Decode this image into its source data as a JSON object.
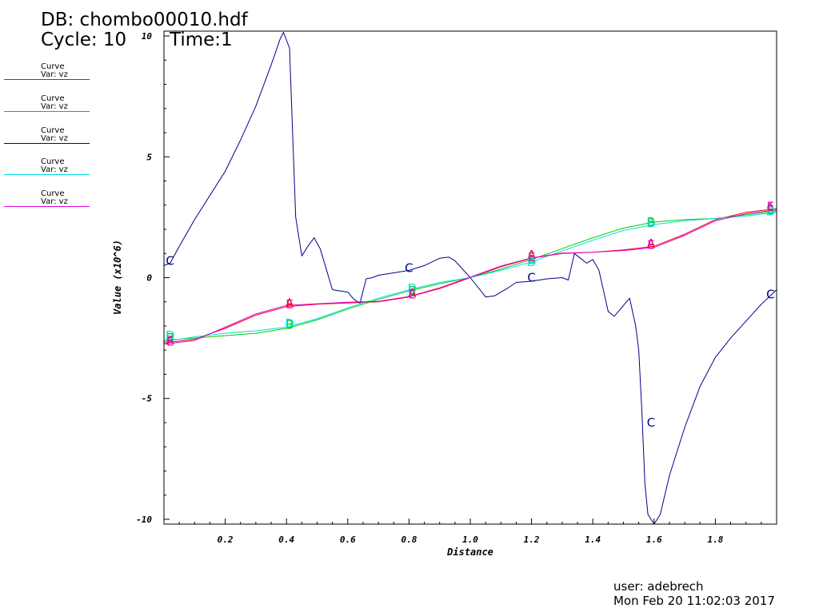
{
  "header": {
    "db_label": "DB: chombo00010.hdf",
    "cycle_label": "Cycle: 10",
    "time_label": "Time:1"
  },
  "legend": [
    {
      "line1": "Curve",
      "line2": "Var: vz",
      "color": "#ff0000"
    },
    {
      "line1": "Curve",
      "line2": "Var: vz",
      "color": "#00cc00"
    },
    {
      "line1": "Curve",
      "line2": "Var: vz",
      "color": "#00008b"
    },
    {
      "line1": "Curve",
      "line2": "Var: vz",
      "color": "#00e0e0"
    },
    {
      "line1": "Curve",
      "line2": "Var: vz",
      "color": "#dd00dd"
    }
  ],
  "footer": {
    "user": "user: adebrech",
    "date": "Mon Feb 20 11:02:03 2017"
  },
  "chart_data": {
    "type": "line",
    "xlabel": "Distance",
    "ylabel": "Value (x10^6)",
    "xlim": [
      0.0,
      2.0
    ],
    "ylim": [
      -10.2,
      10.2
    ],
    "x_ticks": [
      {
        "v": 0.2,
        "label": "0.2"
      },
      {
        "v": 0.4,
        "label": "0.4"
      },
      {
        "v": 0.6,
        "label": "0.6"
      },
      {
        "v": 0.8,
        "label": "0.8"
      },
      {
        "v": 1.0,
        "label": "1.0"
      },
      {
        "v": 1.2,
        "label": "1.2"
      },
      {
        "v": 1.4,
        "label": "1.4"
      },
      {
        "v": 1.6,
        "label": "1.6"
      },
      {
        "v": 1.8,
        "label": "1.8"
      }
    ],
    "y_ticks": [
      {
        "v": 10,
        "label": "10"
      },
      {
        "v": 5,
        "label": "5"
      },
      {
        "v": 0,
        "label": "0"
      },
      {
        "v": -5,
        "label": "-5"
      },
      {
        "v": -10,
        "label": "-10"
      }
    ],
    "series": [
      {
        "color": "#ff0000",
        "marker": "A",
        "x": [
          0.0,
          0.1,
          0.2,
          0.3,
          0.4,
          0.5,
          0.6,
          0.7,
          0.8,
          0.9,
          1.0,
          1.1,
          1.2,
          1.3,
          1.4,
          1.5,
          1.6,
          1.7,
          1.8,
          1.9,
          2.0
        ],
        "values": [
          -2.7,
          -2.55,
          -2.1,
          -1.55,
          -1.2,
          -1.1,
          -1.05,
          -1.0,
          -0.8,
          -0.45,
          0.0,
          0.45,
          0.8,
          1.0,
          1.05,
          1.15,
          1.3,
          1.8,
          2.4,
          2.7,
          2.85
        ],
        "markers": [
          [
            0.02,
            -2.6
          ],
          [
            0.41,
            -1.05
          ],
          [
            0.81,
            -0.65
          ],
          [
            1.2,
            0.95
          ],
          [
            1.59,
            1.4
          ],
          [
            1.98,
            2.9
          ]
        ]
      },
      {
        "color": "#00cc00",
        "marker": "B",
        "x": [
          0.0,
          0.1,
          0.2,
          0.3,
          0.4,
          0.5,
          0.6,
          0.7,
          0.8,
          0.9,
          1.0,
          1.1,
          1.2,
          1.3,
          1.4,
          1.5,
          1.6,
          1.7,
          1.8,
          1.9,
          2.0
        ],
        "values": [
          -2.6,
          -2.5,
          -2.4,
          -2.3,
          -2.1,
          -1.75,
          -1.3,
          -0.9,
          -0.55,
          -0.25,
          0.0,
          0.35,
          0.75,
          1.2,
          1.65,
          2.05,
          2.3,
          2.4,
          2.45,
          2.6,
          2.75
        ],
        "markers": [
          [
            0.02,
            -2.5
          ],
          [
            0.41,
            -1.95
          ],
          [
            0.81,
            -0.55
          ],
          [
            1.2,
            0.75
          ],
          [
            1.59,
            2.3
          ],
          [
            1.98,
            2.8
          ]
        ]
      },
      {
        "color": "#00008b",
        "marker": "C",
        "x": [
          0.0,
          0.02,
          0.05,
          0.1,
          0.15,
          0.2,
          0.25,
          0.3,
          0.35,
          0.38,
          0.39,
          0.41,
          0.43,
          0.45,
          0.47,
          0.49,
          0.51,
          0.55,
          0.6,
          0.62,
          0.64,
          0.66,
          0.68,
          0.7,
          0.75,
          0.8,
          0.85,
          0.9,
          0.93,
          0.95,
          1.0,
          1.05,
          1.08,
          1.12,
          1.15,
          1.2,
          1.25,
          1.3,
          1.32,
          1.34,
          1.36,
          1.38,
          1.4,
          1.42,
          1.45,
          1.47,
          1.49,
          1.52,
          1.54,
          1.55,
          1.56,
          1.57,
          1.58,
          1.6,
          1.62,
          1.65,
          1.7,
          1.75,
          1.8,
          1.85,
          1.9,
          1.95,
          2.0
        ],
        "values": [
          0.5,
          0.6,
          1.3,
          2.4,
          3.4,
          4.4,
          5.7,
          7.1,
          8.8,
          9.9,
          10.15,
          9.5,
          2.5,
          0.9,
          1.3,
          1.65,
          1.2,
          -0.5,
          -0.6,
          -0.9,
          -1.05,
          -0.05,
          0.0,
          0.1,
          0.2,
          0.3,
          0.5,
          0.8,
          0.85,
          0.7,
          0.0,
          -0.8,
          -0.75,
          -0.45,
          -0.2,
          -0.15,
          -0.05,
          0.0,
          -0.1,
          1.0,
          0.8,
          0.6,
          0.75,
          0.3,
          -1.4,
          -1.6,
          -1.3,
          -0.85,
          -2.0,
          -3.0,
          -5.5,
          -8.5,
          -9.8,
          -10.2,
          -9.8,
          -8.2,
          -6.2,
          -4.5,
          -3.3,
          -2.5,
          -1.8,
          -1.1,
          -0.5
        ],
        "markers": [
          [
            0.02,
            0.7
          ],
          [
            0.8,
            0.4
          ],
          [
            1.2,
            0.0
          ],
          [
            1.59,
            -6.0
          ],
          [
            1.98,
            -0.7
          ]
        ]
      },
      {
        "color": "#00e0e0",
        "marker": "D",
        "x": [
          0.0,
          0.1,
          0.2,
          0.3,
          0.4,
          0.5,
          0.6,
          0.7,
          0.8,
          0.9,
          1.0,
          1.1,
          1.2,
          1.3,
          1.4,
          1.5,
          1.6,
          1.7,
          1.8,
          1.9,
          2.0
        ],
        "values": [
          -2.65,
          -2.45,
          -2.3,
          -2.2,
          -2.05,
          -1.7,
          -1.25,
          -0.85,
          -0.5,
          -0.2,
          0.0,
          0.3,
          0.65,
          1.1,
          1.55,
          1.95,
          2.2,
          2.35,
          2.45,
          2.55,
          2.7
        ],
        "markers": [
          [
            0.02,
            -2.4
          ],
          [
            0.41,
            -1.9
          ],
          [
            0.81,
            -0.45
          ],
          [
            1.2,
            0.65
          ],
          [
            1.59,
            2.25
          ],
          [
            1.98,
            2.75
          ]
        ]
      },
      {
        "color": "#dd00dd",
        "marker": "E",
        "x": [
          0.0,
          0.1,
          0.2,
          0.3,
          0.4,
          0.5,
          0.6,
          0.7,
          0.8,
          0.9,
          1.0,
          1.1,
          1.2,
          1.3,
          1.4,
          1.5,
          1.6,
          1.7,
          1.8,
          1.9,
          2.0
        ],
        "values": [
          -2.75,
          -2.6,
          -2.05,
          -1.5,
          -1.15,
          -1.08,
          -1.02,
          -0.98,
          -0.78,
          -0.42,
          0.02,
          0.48,
          0.82,
          1.02,
          1.05,
          1.12,
          1.25,
          1.75,
          2.35,
          2.65,
          2.8
        ],
        "markers": [
          [
            0.02,
            -2.65
          ],
          [
            0.41,
            -1.1
          ],
          [
            0.81,
            -0.7
          ],
          [
            1.2,
            0.85
          ],
          [
            1.59,
            1.35
          ],
          [
            1.98,
            2.95
          ]
        ]
      }
    ]
  }
}
